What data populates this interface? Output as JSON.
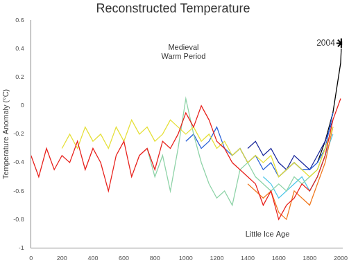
{
  "chart_data": {
    "type": "line",
    "title": "Reconstructed Temperature",
    "y_label": "Temperature Anomaly (°C)",
    "annotations": [
      "Medieval\nWarm Period",
      "Little Ice Age",
      "2004"
    ],
    "x": [
      0,
      50,
      100,
      150,
      200,
      250,
      300,
      350,
      400,
      450,
      500,
      550,
      600,
      650,
      700,
      750,
      800,
      850,
      900,
      950,
      1000,
      1050,
      1100,
      1150,
      1200,
      1250,
      1300,
      1350,
      1400,
      1450,
      1500,
      1550,
      1600,
      1650,
      1700,
      1750,
      1800,
      1850,
      1900,
      1950,
      2000,
      2004
    ],
    "xlim": [
      0,
      2010
    ],
    "xticks": [
      0,
      200,
      400,
      600,
      800,
      1000,
      1200,
      1400,
      1600,
      1800,
      2000
    ],
    "ylim": [
      -1,
      0.6
    ],
    "yticks": [
      -1,
      -0.8,
      -0.6,
      -0.4,
      -0.2,
      0,
      0.2,
      0.4,
      0.6
    ],
    "grid": false,
    "series": [
      {
        "color": "#e8231e",
        "marker": "none",
        "values": [
          -0.35,
          -0.5,
          -0.3,
          -0.45,
          -0.35,
          -0.4,
          -0.25,
          -0.45,
          -0.3,
          -0.4,
          -0.6,
          -0.35,
          -0.25,
          -0.5,
          -0.35,
          -0.3,
          -0.45,
          -0.25,
          -0.3,
          -0.2,
          -0.05,
          -0.15,
          0,
          -0.1,
          -0.25,
          -0.3,
          -0.4,
          -0.45,
          -0.5,
          -0.55,
          -0.7,
          -0.6,
          -0.8,
          -0.7,
          -0.65,
          -0.55,
          -0.6,
          -0.5,
          -0.35,
          -0.1,
          0.05,
          null
        ]
      },
      {
        "color": "#e6e03c",
        "marker": "none",
        "values": [
          null,
          null,
          null,
          null,
          -0.3,
          -0.2,
          -0.3,
          -0.15,
          -0.25,
          -0.2,
          -0.3,
          -0.15,
          -0.25,
          -0.1,
          -0.2,
          -0.15,
          -0.25,
          -0.2,
          -0.1,
          -0.15,
          -0.2,
          -0.15,
          -0.25,
          -0.2,
          -0.3,
          -0.25,
          -0.35,
          -0.3,
          -0.4,
          -0.35,
          -0.4,
          -0.35,
          -0.5,
          -0.45,
          -0.4,
          -0.45,
          -0.5,
          -0.45,
          -0.3,
          -0.15,
          null,
          null
        ]
      },
      {
        "color": "#8fd3a8",
        "marker": "none",
        "values": [
          null,
          null,
          null,
          null,
          null,
          null,
          null,
          null,
          null,
          null,
          null,
          null,
          null,
          null,
          null,
          -0.3,
          -0.5,
          -0.35,
          -0.6,
          -0.3,
          0.05,
          -0.2,
          -0.4,
          -0.55,
          -0.65,
          -0.6,
          -0.7,
          -0.45,
          -0.4,
          -0.5,
          -0.55,
          -0.6,
          -0.55,
          -0.6,
          -0.5,
          -0.55,
          -0.5,
          -0.45,
          -0.3,
          -0.15,
          null,
          null
        ]
      },
      {
        "color": "#2a62d8",
        "marker": "none",
        "values": [
          null,
          null,
          null,
          null,
          null,
          null,
          null,
          null,
          null,
          null,
          null,
          null,
          null,
          null,
          null,
          null,
          null,
          null,
          null,
          null,
          -0.25,
          -0.2,
          -0.3,
          -0.25,
          -0.15,
          -0.3,
          -0.35,
          -0.3,
          -0.4,
          -0.35,
          -0.45,
          -0.4,
          -0.5,
          -0.45,
          -0.4,
          -0.45,
          -0.45,
          -0.4,
          -0.3,
          -0.05,
          null,
          null
        ]
      },
      {
        "color": "#1c2a9c",
        "marker": "none",
        "values": [
          null,
          null,
          null,
          null,
          null,
          null,
          null,
          null,
          null,
          null,
          null,
          null,
          null,
          null,
          null,
          null,
          null,
          null,
          null,
          null,
          null,
          null,
          null,
          null,
          null,
          null,
          null,
          null,
          -0.3,
          -0.25,
          -0.35,
          -0.3,
          -0.4,
          -0.45,
          -0.35,
          -0.4,
          -0.45,
          -0.35,
          -0.25,
          -0.1,
          null,
          null
        ]
      },
      {
        "color": "#f07a22",
        "marker": "none",
        "values": [
          null,
          null,
          null,
          null,
          null,
          null,
          null,
          null,
          null,
          null,
          null,
          null,
          null,
          null,
          null,
          null,
          null,
          null,
          null,
          null,
          null,
          null,
          null,
          null,
          null,
          null,
          null,
          null,
          -0.55,
          -0.6,
          -0.65,
          -0.6,
          -0.75,
          -0.8,
          -0.6,
          -0.65,
          -0.7,
          -0.55,
          -0.4,
          -0.15,
          null,
          null
        ]
      },
      {
        "color": "#4fc8ea",
        "marker": "none",
        "values": [
          null,
          null,
          null,
          null,
          null,
          null,
          null,
          null,
          null,
          null,
          null,
          null,
          null,
          null,
          null,
          null,
          null,
          null,
          null,
          null,
          null,
          null,
          null,
          null,
          null,
          null,
          null,
          null,
          null,
          null,
          -0.5,
          -0.55,
          -0.65,
          -0.6,
          -0.55,
          -0.5,
          -0.6,
          -0.5,
          -0.35,
          -0.2,
          null,
          null
        ]
      },
      {
        "color": "#000000",
        "marker": "none",
        "values": [
          null,
          null,
          null,
          null,
          null,
          null,
          null,
          null,
          null,
          null,
          null,
          null,
          null,
          null,
          null,
          null,
          null,
          null,
          null,
          null,
          null,
          null,
          null,
          null,
          null,
          null,
          null,
          null,
          null,
          null,
          null,
          null,
          null,
          null,
          null,
          null,
          null,
          -0.4,
          -0.25,
          -0.05,
          0.3,
          0.4
        ]
      },
      {
        "type": "scatter",
        "color": "#000000",
        "marker": "star",
        "values": [
          null,
          null,
          null,
          null,
          null,
          null,
          null,
          null,
          null,
          null,
          null,
          null,
          null,
          null,
          null,
          null,
          null,
          null,
          null,
          null,
          null,
          null,
          null,
          null,
          null,
          null,
          null,
          null,
          null,
          null,
          null,
          null,
          null,
          null,
          null,
          null,
          null,
          null,
          null,
          null,
          null,
          0.44
        ]
      }
    ]
  }
}
